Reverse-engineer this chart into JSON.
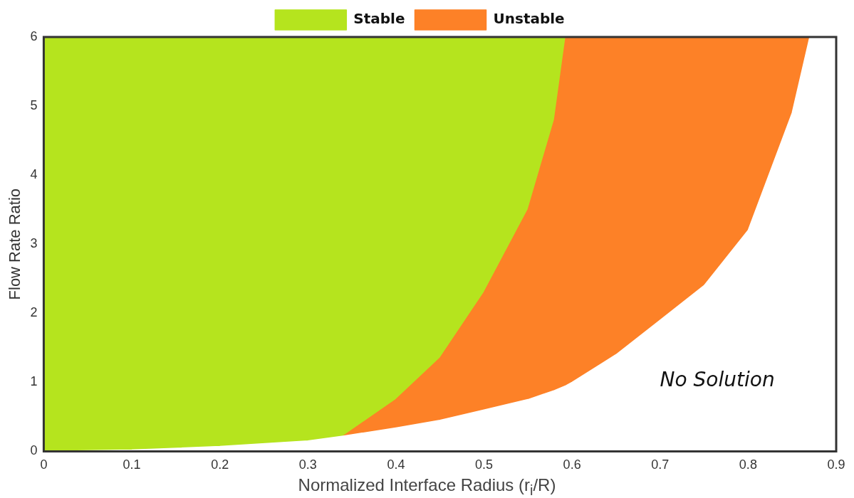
{
  "chart_data": {
    "type": "area",
    "stacked": true,
    "xlabel": "Normalized Interface Radius (r$_{i}$/R)",
    "ylabel": "Flow Rate Ratio",
    "x": [
      0,
      0.1,
      0.2,
      0.3,
      0.34,
      0.4,
      0.45,
      0.5,
      0.55,
      0.58,
      0.593,
      0.6,
      0.65,
      0.7,
      0.75,
      0.8,
      0.85,
      0.87,
      0.9
    ],
    "series": [
      {
        "color": "#ffffff",
        "values": [
          0,
          0.02,
          0.07,
          0.15,
          0.22,
          0.34,
          0.45,
          0.6,
          0.75,
          0.88,
          0.95,
          1.0,
          1.4,
          1.9,
          2.4,
          3.2,
          4.9,
          6,
          6
        ]
      },
      {
        "name": "Unstable",
        "color": "#fd8127",
        "values": [
          null,
          null,
          null,
          null,
          0,
          0.41,
          0.9,
          1.7,
          2.75,
          3.92,
          5.05,
          5.0,
          4.6,
          4.1,
          3.6,
          2.8,
          1.1,
          0,
          null
        ]
      },
      {
        "name": "Stable",
        "color": "#b5e41e",
        "values": [
          6,
          5.98,
          5.93,
          5.85,
          5.78,
          5.25,
          4.65,
          3.7,
          2.5,
          1.2,
          0,
          null,
          null,
          null,
          null,
          null,
          null,
          null,
          null
        ]
      }
    ],
    "annotations": [
      "No Solution"
    ],
    "xlim": [
      0,
      0.9
    ],
    "xticks": [
      0,
      0.1,
      0.2,
      0.3,
      0.4,
      0.5,
      0.6,
      0.7,
      0.8,
      0.9
    ],
    "ylim": [
      0,
      6
    ],
    "yticks": [
      0,
      1,
      2,
      3,
      4,
      5,
      6
    ],
    "legend": "top",
    "grid": false
  }
}
